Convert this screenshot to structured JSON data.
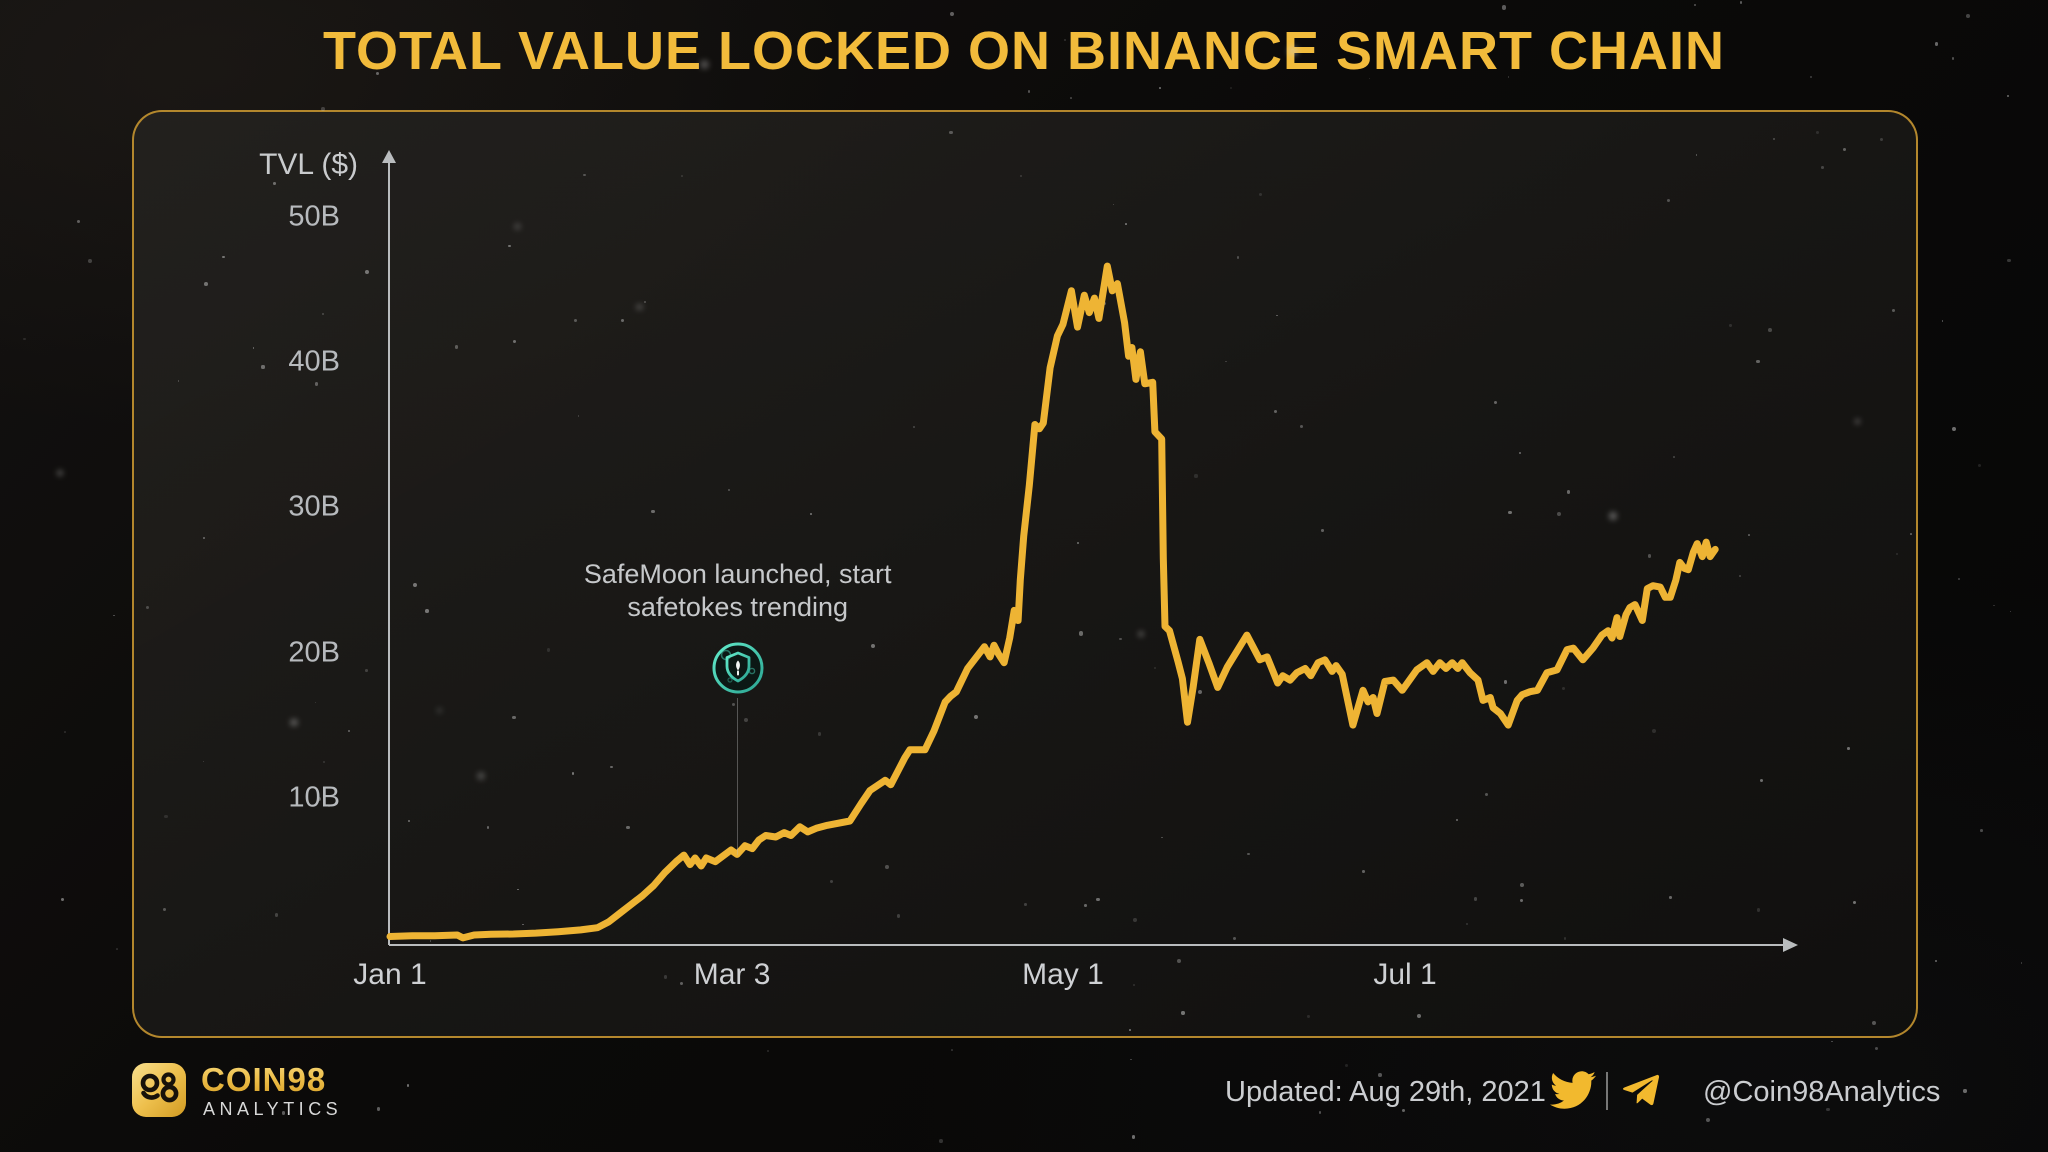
{
  "title": "TOTAL VALUE LOCKED ON BINANCE SMART CHAIN",
  "colors": {
    "accent_gold": "#F2BB3B",
    "line": "#EEB434",
    "panel_border": "#C49430",
    "axis": "#B9BCBE",
    "tick_text": "#B7BABD",
    "annotation_text": "#C6C8CA",
    "safemoon_teal": "#4BE0C3"
  },
  "chart_data": {
    "type": "line",
    "title": "TOTAL VALUE LOCKED ON BINANCE SMART CHAIN",
    "xlabel": "",
    "ylabel": "TVL ($)",
    "unit": "billions USD",
    "grid": false,
    "legend": "none",
    "ylim": [
      0,
      53
    ],
    "x_range_days": [
      0,
      237
    ],
    "x_start_date": "Jan 1, 2021",
    "x_end_date": "Aug 29, 2021",
    "y_ticks": [
      {
        "label": "50B",
        "value": 50
      },
      {
        "label": "40B",
        "value": 40
      },
      {
        "label": "30B",
        "value": 30
      },
      {
        "label": "20B",
        "value": 20
      },
      {
        "label": "10B",
        "value": 10
      }
    ],
    "x_ticks": [
      {
        "label": "Jan 1",
        "day": 0
      },
      {
        "label": "Mar 3",
        "day": 61
      },
      {
        "label": "May 1",
        "day": 120
      },
      {
        "label": "Jul 1",
        "day": 181
      }
    ],
    "annotation": {
      "line1": "SafeMoon launched, start",
      "line2": "safetokes trending",
      "day": 62,
      "icon": "safemoon-coin-icon"
    },
    "series": [
      {
        "name": "TVL",
        "color": "#EEB434",
        "points": [
          [
            0,
            0.45
          ],
          [
            4,
            0.5
          ],
          [
            8,
            0.5
          ],
          [
            12,
            0.55
          ],
          [
            13,
            0.35
          ],
          [
            15,
            0.55
          ],
          [
            18,
            0.6
          ],
          [
            22,
            0.62
          ],
          [
            26,
            0.68
          ],
          [
            30,
            0.78
          ],
          [
            34,
            0.9
          ],
          [
            37,
            1.05
          ],
          [
            39,
            1.45
          ],
          [
            41,
            2.05
          ],
          [
            43,
            2.65
          ],
          [
            45,
            3.25
          ],
          [
            47,
            3.95
          ],
          [
            49,
            4.85
          ],
          [
            51,
            5.6
          ],
          [
            52.4,
            6.05
          ],
          [
            53.5,
            5.4
          ],
          [
            54.4,
            5.85
          ],
          [
            55.5,
            5.3
          ],
          [
            56.4,
            5.85
          ],
          [
            58,
            5.6
          ],
          [
            60.8,
            6.4
          ],
          [
            61.9,
            6.1
          ],
          [
            63.3,
            6.7
          ],
          [
            64.6,
            6.5
          ],
          [
            65.8,
            7.1
          ],
          [
            67,
            7.4
          ],
          [
            68.8,
            7.3
          ],
          [
            70.3,
            7.6
          ],
          [
            71.5,
            7.4
          ],
          [
            73.1,
            8
          ],
          [
            74.5,
            7.65
          ],
          [
            76,
            7.9
          ],
          [
            78,
            8.1
          ],
          [
            82,
            8.4
          ],
          [
            84,
            9.6
          ],
          [
            85.6,
            10.5
          ],
          [
            88.3,
            11.2
          ],
          [
            89.3,
            10.9
          ],
          [
            91.8,
            12.75
          ],
          [
            92.7,
            13.3
          ],
          [
            95.4,
            13.3
          ],
          [
            97,
            14.6
          ],
          [
            99,
            16.6
          ],
          [
            100,
            17
          ],
          [
            101,
            17.3
          ],
          [
            103,
            18.9
          ],
          [
            105,
            19.9
          ],
          [
            106,
            20.4
          ],
          [
            107,
            19.7
          ],
          [
            107.7,
            20.5
          ],
          [
            108.5,
            19.9
          ],
          [
            109.5,
            19.3
          ],
          [
            110.5,
            21
          ],
          [
            111.3,
            22.9
          ],
          [
            112,
            22.2
          ],
          [
            112.4,
            25
          ],
          [
            113,
            28
          ],
          [
            114,
            31.5
          ],
          [
            115,
            35.7
          ],
          [
            115.8,
            35.4
          ],
          [
            116.5,
            35.8
          ],
          [
            117.7,
            39.6
          ],
          [
            119,
            41.8
          ],
          [
            120,
            42.6
          ],
          [
            121.5,
            44.9
          ],
          [
            122.6,
            42.4
          ],
          [
            123.8,
            44.6
          ],
          [
            124.7,
            43.4
          ],
          [
            125.6,
            44.4
          ],
          [
            126.4,
            43
          ],
          [
            127.9,
            46.6
          ],
          [
            128.8,
            44.9
          ],
          [
            129.7,
            45.4
          ],
          [
            131,
            42.7
          ],
          [
            131.7,
            40.4
          ],
          [
            132.3,
            41
          ],
          [
            133,
            38.8
          ],
          [
            133.8,
            40.7
          ],
          [
            134.6,
            38.5
          ],
          [
            136,
            38.6
          ],
          [
            136.4,
            35.2
          ],
          [
            137.6,
            34.7
          ],
          [
            137.9,
            26.5
          ],
          [
            138.2,
            21.8
          ],
          [
            139,
            21.5
          ],
          [
            140.5,
            19.4
          ],
          [
            141.3,
            18.2
          ],
          [
            142.2,
            15.2
          ],
          [
            143.2,
            17.6
          ],
          [
            144.4,
            20.9
          ],
          [
            146,
            19.3
          ],
          [
            147.6,
            17.6
          ],
          [
            149.3,
            19
          ],
          [
            152.8,
            21.2
          ],
          [
            155.1,
            19.5
          ],
          [
            156.4,
            19.7
          ],
          [
            158.3,
            17.9
          ],
          [
            159.2,
            18.4
          ],
          [
            160.5,
            18.1
          ],
          [
            161.7,
            18.6
          ],
          [
            163.2,
            18.9
          ],
          [
            164.2,
            18.4
          ],
          [
            165.5,
            19.3
          ],
          [
            166.7,
            19.5
          ],
          [
            168,
            18.7
          ],
          [
            168.7,
            19.1
          ],
          [
            169.8,
            18.5
          ],
          [
            171.7,
            15
          ],
          [
            173.5,
            17.4
          ],
          [
            174.4,
            16.6
          ],
          [
            175.3,
            16.9
          ],
          [
            176,
            15.8
          ],
          [
            177.4,
            18
          ],
          [
            178.9,
            18.1
          ],
          [
            180.5,
            17.4
          ],
          [
            183.1,
            18.8
          ],
          [
            184.9,
            19.3
          ],
          [
            186,
            18.7
          ],
          [
            187.2,
            19.3
          ],
          [
            188.3,
            18.9
          ],
          [
            189.4,
            19.3
          ],
          [
            190.4,
            18.9
          ],
          [
            191.2,
            19.3
          ],
          [
            192.6,
            18.6
          ],
          [
            194,
            18.1
          ],
          [
            194.9,
            16.7
          ],
          [
            196.2,
            16.9
          ],
          [
            196.7,
            16.2
          ],
          [
            198,
            15.8
          ],
          [
            199.4,
            15
          ],
          [
            201,
            16.7
          ],
          [
            201.9,
            17.1
          ],
          [
            203.3,
            17.3
          ],
          [
            204.6,
            17.4
          ],
          [
            206.3,
            18.6
          ],
          [
            208.1,
            18.8
          ],
          [
            209.9,
            20.2
          ],
          [
            211,
            20.3
          ],
          [
            212.7,
            19.5
          ],
          [
            214.5,
            20.3
          ],
          [
            216.1,
            21.2
          ],
          [
            217.2,
            21.5
          ],
          [
            217.9,
            21
          ],
          [
            218.8,
            22.4
          ],
          [
            219.3,
            21.1
          ],
          [
            220.4,
            22.6
          ],
          [
            221.1,
            23.1
          ],
          [
            222,
            23.3
          ],
          [
            223.3,
            22.2
          ],
          [
            224.2,
            24.4
          ],
          [
            225.2,
            24.6
          ],
          [
            226.5,
            24.5
          ],
          [
            227.4,
            23.8
          ],
          [
            228.3,
            23.8
          ],
          [
            229.3,
            25
          ],
          [
            230,
            26.2
          ],
          [
            230.8,
            25.8
          ],
          [
            231.5,
            25.7
          ],
          [
            232.4,
            26.9
          ],
          [
            233.1,
            27.5
          ],
          [
            234,
            26.6
          ],
          [
            234.7,
            27.6
          ],
          [
            235.4,
            26.6
          ],
          [
            236.3,
            27.1
          ]
        ]
      }
    ]
  },
  "footer": {
    "brand_name": "COIN98",
    "brand_sub": "ANALYTICS",
    "logo_glyph": "98",
    "updated": "Updated: Aug 29th, 2021",
    "handle": "@Coin98Analytics",
    "icons": [
      "coin98-logo-icon",
      "twitter-icon",
      "telegram-icon"
    ]
  }
}
